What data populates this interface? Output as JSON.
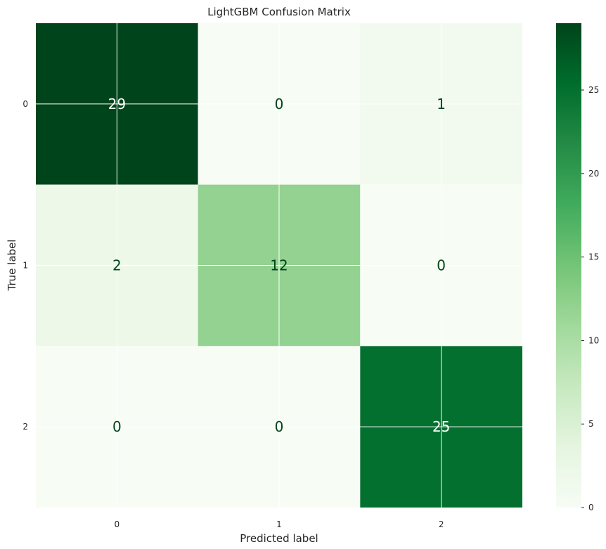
{
  "chart_data": {
    "type": "heatmap",
    "title": "LightGBM Confusion Matrix",
    "xlabel": "Predicted label",
    "ylabel": "True label",
    "x_categories": [
      "0",
      "1",
      "2"
    ],
    "y_categories": [
      "0",
      "1",
      "2"
    ],
    "matrix": [
      [
        29,
        0,
        1
      ],
      [
        2,
        12,
        0
      ],
      [
        0,
        0,
        25
      ]
    ],
    "colormap": "Greens",
    "colorbar": {
      "min": 0,
      "max": 29,
      "ticks": [
        0,
        5,
        10,
        15,
        20,
        25
      ]
    },
    "grid": true,
    "colors": {
      "low": "#f7fcf5",
      "high": "#00441b",
      "text_dark": "#00441b",
      "text_light": "#ffffff",
      "grid": "#ffffff"
    }
  }
}
